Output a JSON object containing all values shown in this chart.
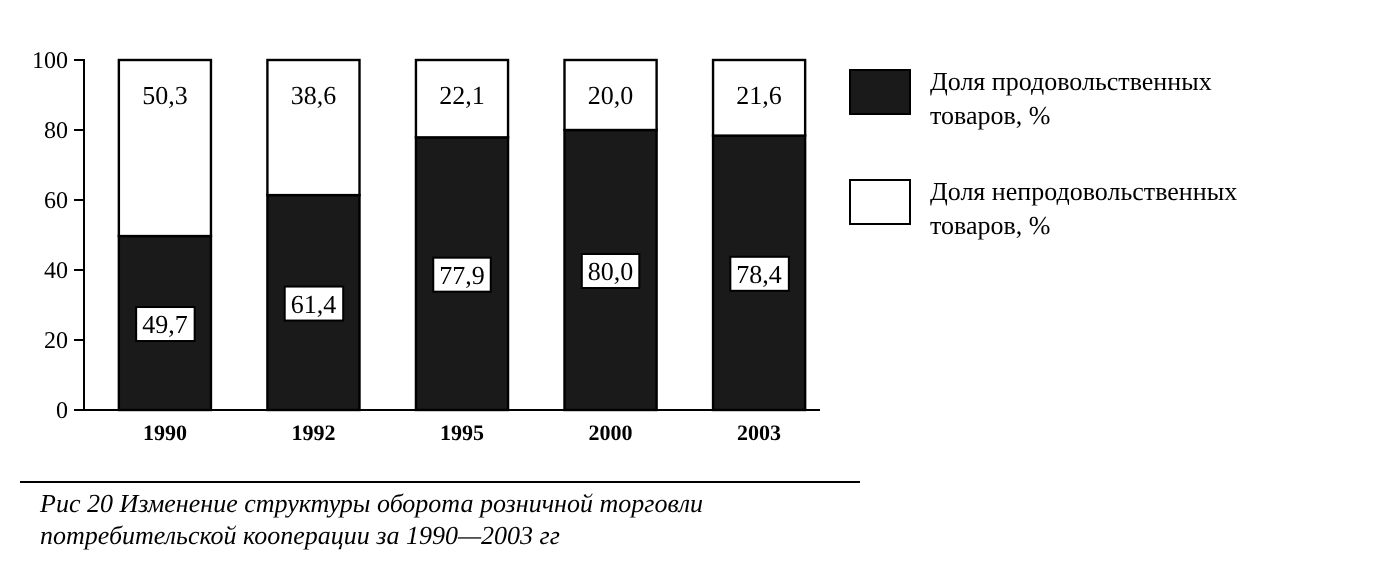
{
  "chart_data": {
    "type": "bar",
    "stacked": true,
    "categories": [
      "1990",
      "1992",
      "1995",
      "2000",
      "2003"
    ],
    "series": [
      {
        "name": "Доля продовольственных товаров, %",
        "color": "#1a1a1a",
        "values": [
          49.7,
          61.4,
          77.9,
          80.0,
          78.4
        ],
        "value_labels": [
          "49,7",
          "61,4",
          "77,9",
          "80,0",
          "78,4"
        ]
      },
      {
        "name": "Доля непродовольственных товаров, %",
        "color": "#ffffff",
        "values": [
          50.3,
          38.6,
          22.1,
          20.0,
          21.6
        ],
        "value_labels": [
          "50,3",
          "38,6",
          "22,1",
          "20,0",
          "21,6"
        ]
      }
    ],
    "ylim": [
      0,
      100
    ],
    "yticks": [
      0,
      20,
      40,
      60,
      80,
      100
    ],
    "grid": false,
    "legend": "right",
    "annotations": [
      "Рис 20 Изменение структуры оборота розничной торговли потребительской кооперации за 1990—2003 гг"
    ]
  }
}
